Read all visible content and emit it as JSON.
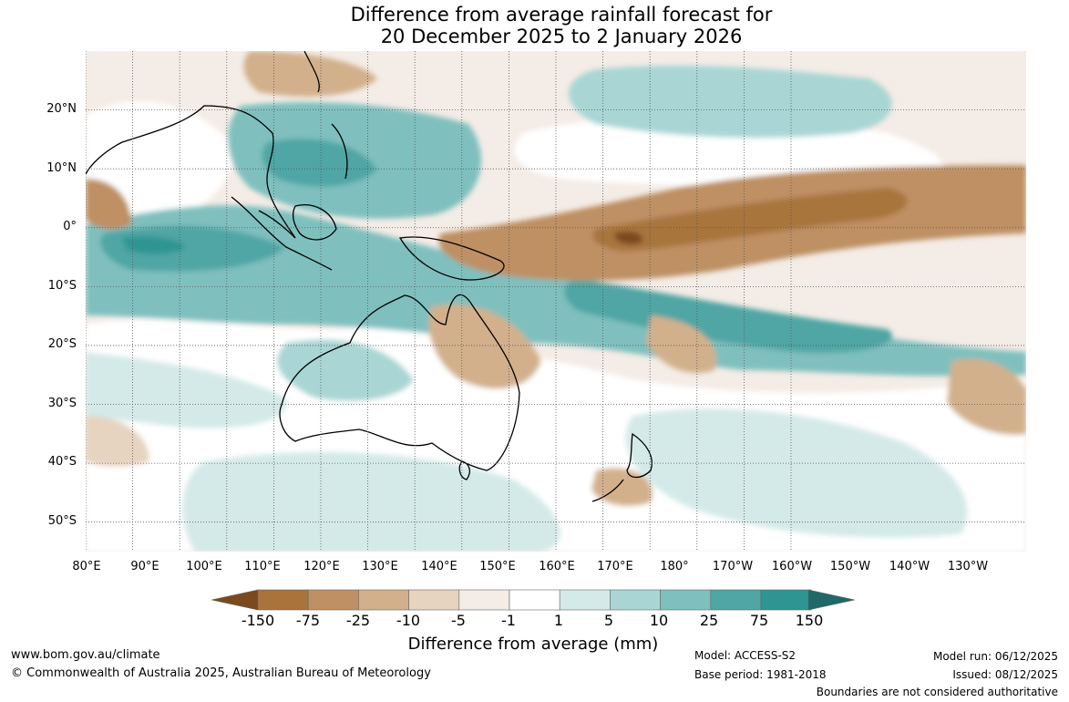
{
  "title": {
    "line1": "Difference from average rainfall forecast for",
    "line2": "20 December 2025 to 2 January 2026"
  },
  "map": {
    "projection": "equirectangular",
    "lon_range": "80°E to 120°W",
    "lat_range": "55°S to 30°N",
    "grid": true,
    "lat_labels": [
      "20°N",
      "10°N",
      "0°",
      "10°S",
      "20°S",
      "30°S",
      "40°S",
      "50°S"
    ],
    "lon_labels": [
      "80°E",
      "90°E",
      "100°E",
      "110°E",
      "120°E",
      "130°E",
      "140°E",
      "150°E",
      "160°E",
      "170°E",
      "180°",
      "170°W",
      "160°W",
      "150°W",
      "140°W",
      "130°W"
    ]
  },
  "colorbar": {
    "title": "Difference from average (mm)",
    "ticks": [
      "-150",
      "-75",
      "-25",
      "-10",
      "-5",
      "-1",
      "1",
      "5",
      "10",
      "25",
      "75",
      "150"
    ],
    "colors": [
      "#7a4a1e",
      "#a8743c",
      "#be9064",
      "#d2b08c",
      "#e6d3c0",
      "#f4ece6",
      "#ffffff",
      "#d4eae8",
      "#a9d6d4",
      "#7fc0be",
      "#4fa6a4",
      "#2e9592",
      "#1f6a68"
    ]
  },
  "footer": {
    "website": "www.bom.gov.au/climate",
    "copyright": "© Commonwealth of Australia 2025, Australian Bureau of Meteorology",
    "model": "Model: ACCESS-S2",
    "base_period": "Base period: 1981-2018",
    "model_run": "Model run: 06/12/2025",
    "issued": "Issued: 08/12/2025",
    "disclaimer": "Boundaries are not considered authoritative"
  }
}
